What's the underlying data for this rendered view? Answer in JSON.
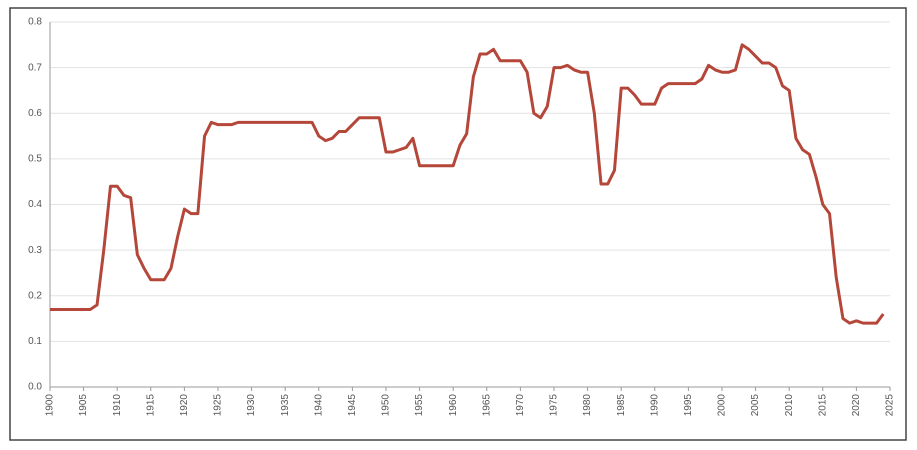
{
  "chart_data": {
    "type": "line",
    "x": [
      1900,
      1901,
      1902,
      1903,
      1904,
      1905,
      1906,
      1907,
      1908,
      1909,
      1910,
      1911,
      1912,
      1913,
      1914,
      1915,
      1916,
      1917,
      1918,
      1919,
      1920,
      1921,
      1922,
      1923,
      1924,
      1925,
      1926,
      1927,
      1928,
      1929,
      1930,
      1931,
      1932,
      1933,
      1934,
      1935,
      1936,
      1937,
      1938,
      1939,
      1940,
      1941,
      1942,
      1943,
      1944,
      1945,
      1946,
      1947,
      1948,
      1949,
      1950,
      1951,
      1952,
      1953,
      1954,
      1955,
      1956,
      1957,
      1958,
      1959,
      1960,
      1961,
      1962,
      1963,
      1964,
      1965,
      1966,
      1967,
      1968,
      1969,
      1970,
      1971,
      1972,
      1973,
      1974,
      1975,
      1976,
      1977,
      1978,
      1979,
      1980,
      1981,
      1982,
      1983,
      1984,
      1985,
      1986,
      1987,
      1988,
      1989,
      1990,
      1991,
      1992,
      1993,
      1994,
      1995,
      1996,
      1997,
      1998,
      1999,
      2000,
      2001,
      2002,
      2003,
      2004,
      2005,
      2006,
      2007,
      2008,
      2009,
      2010,
      2011,
      2012,
      2013,
      2014,
      2015,
      2016,
      2017,
      2018,
      2019,
      2020,
      2021,
      2022,
      2023,
      2024
    ],
    "values": [
      0.17,
      0.17,
      0.17,
      0.17,
      0.17,
      0.17,
      0.17,
      0.18,
      0.3,
      0.44,
      0.44,
      0.42,
      0.415,
      0.29,
      0.26,
      0.235,
      0.235,
      0.235,
      0.26,
      0.33,
      0.39,
      0.38,
      0.38,
      0.55,
      0.58,
      0.575,
      0.575,
      0.575,
      0.58,
      0.58,
      0.58,
      0.58,
      0.58,
      0.58,
      0.58,
      0.58,
      0.58,
      0.58,
      0.58,
      0.58,
      0.55,
      0.54,
      0.545,
      0.56,
      0.56,
      0.575,
      0.59,
      0.59,
      0.59,
      0.59,
      0.515,
      0.515,
      0.52,
      0.525,
      0.545,
      0.485,
      0.485,
      0.485,
      0.485,
      0.485,
      0.485,
      0.53,
      0.555,
      0.68,
      0.73,
      0.73,
      0.74,
      0.715,
      0.715,
      0.715,
      0.715,
      0.69,
      0.6,
      0.59,
      0.615,
      0.7,
      0.7,
      0.705,
      0.695,
      0.69,
      0.69,
      0.6,
      0.445,
      0.445,
      0.475,
      0.655,
      0.655,
      0.64,
      0.62,
      0.62,
      0.62,
      0.655,
      0.665,
      0.665,
      0.665,
      0.665,
      0.665,
      0.675,
      0.705,
      0.695,
      0.69,
      0.69,
      0.695,
      0.75,
      0.74,
      0.725,
      0.71,
      0.71,
      0.7,
      0.66,
      0.65,
      0.545,
      0.52,
      0.51,
      0.46,
      0.4,
      0.38,
      0.24,
      0.15,
      0.14,
      0.145,
      0.14,
      0.14,
      0.14,
      0.16
    ],
    "color": "#b5473a",
    "xlim": [
      1900,
      2025
    ],
    "xticks": [
      1900,
      1905,
      1910,
      1915,
      1920,
      1925,
      1930,
      1935,
      1940,
      1945,
      1950,
      1955,
      1960,
      1965,
      1970,
      1975,
      1980,
      1985,
      1990,
      1995,
      2000,
      2005,
      2010,
      2015,
      2020,
      2025
    ],
    "ylim": [
      0,
      0.8
    ],
    "yticks": [
      {
        "value": 0,
        "label": "0.0"
      },
      0.1,
      0.2,
      0.3,
      0.4,
      0.5,
      0.6,
      0.7,
      0.8
    ],
    "grid": true
  }
}
